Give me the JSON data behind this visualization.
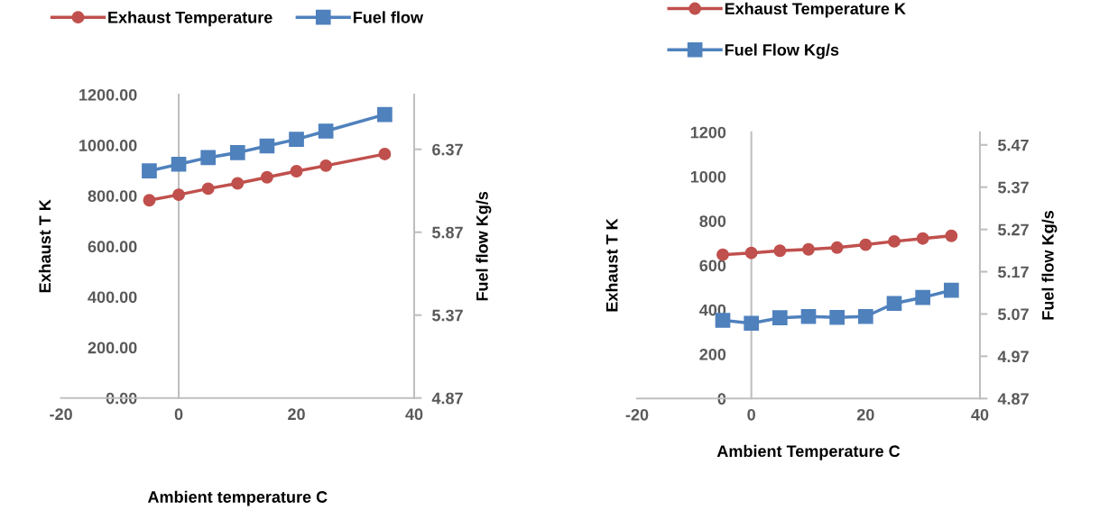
{
  "chart_data": [
    {
      "type": "line",
      "xlabel": "Ambient temperature C",
      "ylabel": "Exhaust T K",
      "y2label": "Fuel flow Kg/s",
      "xlim": [
        -20,
        40
      ],
      "xticks": [
        -20,
        0,
        20,
        40
      ],
      "ylim": [
        0,
        1200
      ],
      "yticks": [
        {
          "value": 0,
          "label": "0.00"
        },
        {
          "value": 200,
          "label": "200.00"
        },
        {
          "value": 400,
          "label": "400.00"
        },
        {
          "value": 600,
          "label": "600.00"
        },
        {
          "value": 800,
          "label": "800.00"
        },
        {
          "value": 1000,
          "label": "1000.00"
        },
        {
          "value": 1200,
          "label": "1200.00"
        }
      ],
      "y2lim": [
        4.87,
        6.7
      ],
      "y2ticks": [
        4.87,
        5.37,
        5.87,
        6.37
      ],
      "grid": false,
      "legend": "top",
      "series": [
        {
          "name": "Exhaust Temperature",
          "color": "#c0504d",
          "marker": "circle",
          "x": [
            -5,
            0,
            5,
            10,
            15,
            20,
            25,
            35
          ],
          "values": [
            782,
            804,
            828,
            849,
            873,
            897,
            919,
            965
          ]
        },
        {
          "name": "Fuel flow",
          "color": "#4f81bd",
          "marker": "square",
          "axis": "y2",
          "x": [
            -5,
            0,
            5,
            10,
            15,
            20,
            25,
            35
          ],
          "values": [
            6.24,
            6.28,
            6.32,
            6.35,
            6.39,
            6.43,
            6.48,
            6.58
          ]
        }
      ]
    },
    {
      "type": "line",
      "xlabel": "Ambient Temperature C",
      "ylabel": "Exhaust T K",
      "y2label": "Fuel flow Kg/s",
      "xlim": [
        -20,
        40
      ],
      "xticks": [
        -20,
        0,
        20,
        40
      ],
      "ylim": [
        0,
        1200
      ],
      "yticks": [
        0,
        200,
        400,
        600,
        800,
        1000,
        1200
      ],
      "y2lim": [
        4.87,
        5.5
      ],
      "y2ticks": [
        4.87,
        4.97,
        5.07,
        5.17,
        5.27,
        5.37,
        5.47
      ],
      "grid": false,
      "legend": "top",
      "series": [
        {
          "name": "Exhaust Temperature K",
          "color": "#c0504d",
          "marker": "circle",
          "x": [
            -5,
            0,
            5,
            10,
            15,
            20,
            25,
            30,
            35
          ],
          "values": [
            648,
            656,
            666,
            672,
            680,
            693,
            708,
            721,
            733
          ]
        },
        {
          "name": "Fuel Flow Kg/s",
          "color": "#4f81bd",
          "marker": "square",
          "axis": "y2",
          "x": [
            -5,
            0,
            5,
            10,
            15,
            20,
            25,
            30,
            35
          ],
          "values": [
            5.055,
            5.048,
            5.061,
            5.064,
            5.062,
            5.064,
            5.095,
            5.109,
            5.126
          ]
        }
      ]
    }
  ]
}
